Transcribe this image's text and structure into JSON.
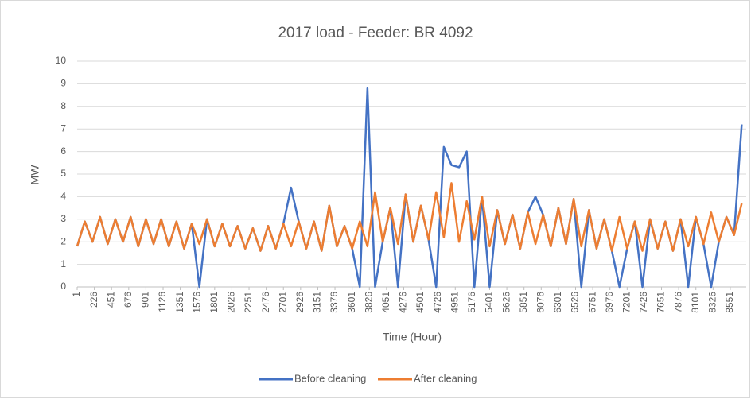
{
  "chart_data": {
    "type": "line",
    "title": "2017 load - Feeder:  BR 4092",
    "xlabel": "Time (Hour)",
    "ylabel": "MW",
    "x": [
      1,
      101,
      201,
      301,
      401,
      501,
      601,
      701,
      801,
      901,
      1001,
      1101,
      1201,
      1301,
      1401,
      1501,
      1601,
      1701,
      1801,
      1901,
      2001,
      2101,
      2201,
      2301,
      2401,
      2501,
      2601,
      2701,
      2801,
      2901,
      3001,
      3101,
      3201,
      3301,
      3401,
      3501,
      3601,
      3701,
      3801,
      3901,
      4001,
      4101,
      4201,
      4301,
      4401,
      4501,
      4601,
      4701,
      4801,
      4901,
      5001,
      5101,
      5201,
      5301,
      5401,
      5501,
      5601,
      5701,
      5801,
      5901,
      6001,
      6101,
      6201,
      6301,
      6401,
      6501,
      6601,
      6701,
      6801,
      6901,
      7001,
      7101,
      7201,
      7301,
      7401,
      7501,
      7601,
      7701,
      7801,
      7901,
      8001,
      8101,
      8201,
      8301,
      8401,
      8501,
      8601,
      8701
    ],
    "series": [
      {
        "name": "Before cleaning",
        "color": "#4472c4",
        "values": [
          1.8,
          2.9,
          2.0,
          3.1,
          1.9,
          3.0,
          2.0,
          3.1,
          1.8,
          3.0,
          1.9,
          3.0,
          1.8,
          2.9,
          1.7,
          2.8,
          0,
          3.0,
          1.8,
          2.8,
          1.8,
          2.7,
          1.7,
          2.6,
          1.6,
          2.7,
          1.7,
          2.8,
          4.4,
          2.9,
          1.7,
          2.9,
          1.6,
          3.6,
          1.8,
          2.7,
          1.7,
          0,
          8.8,
          0,
          2.0,
          3.5,
          0,
          4.1,
          2.0,
          3.6,
          2.1,
          0,
          6.2,
          5.4,
          5.3,
          6.0,
          0,
          4.0,
          0,
          3.4,
          1.9,
          3.2,
          1.7,
          3.3,
          4.0,
          3.2,
          1.8,
          3.5,
          1.9,
          3.9,
          0,
          3.4,
          1.7,
          3.0,
          1.6,
          0,
          1.7,
          2.9,
          0,
          3.0,
          1.7,
          2.9,
          1.6,
          3.0,
          0,
          3.1,
          1.9,
          0,
          2.0,
          3.1,
          2.3,
          7.2
        ]
      },
      {
        "name": "After cleaning",
        "color": "#ed7d31",
        "values": [
          1.8,
          2.9,
          2.0,
          3.1,
          1.9,
          3.0,
          2.0,
          3.1,
          1.8,
          3.0,
          1.9,
          3.0,
          1.8,
          2.9,
          1.7,
          2.8,
          1.9,
          3.0,
          1.8,
          2.8,
          1.8,
          2.7,
          1.7,
          2.6,
          1.6,
          2.7,
          1.7,
          2.8,
          1.8,
          2.9,
          1.7,
          2.9,
          1.6,
          3.6,
          1.8,
          2.7,
          1.7,
          2.9,
          1.8,
          4.2,
          2.0,
          3.5,
          1.9,
          4.1,
          2.0,
          3.6,
          2.1,
          4.2,
          2.2,
          4.6,
          2.0,
          3.8,
          2.1,
          4.0,
          1.8,
          3.4,
          1.9,
          3.2,
          1.7,
          3.3,
          1.9,
          3.2,
          1.8,
          3.5,
          1.9,
          3.9,
          1.8,
          3.4,
          1.7,
          3.0,
          1.6,
          3.1,
          1.7,
          2.9,
          1.6,
          3.0,
          1.7,
          2.9,
          1.6,
          3.0,
          1.8,
          3.1,
          1.9,
          3.3,
          2.0,
          3.1,
          2.3,
          3.7
        ]
      }
    ],
    "xlim": [
      1,
      8760
    ],
    "xticks": [
      1,
      226,
      451,
      676,
      901,
      1126,
      1351,
      1576,
      1801,
      2026,
      2251,
      2476,
      2701,
      2926,
      3151,
      3376,
      3601,
      3826,
      4051,
      4276,
      4501,
      4726,
      4951,
      5176,
      5401,
      5626,
      5851,
      6076,
      6301,
      6526,
      6751,
      6976,
      7201,
      7426,
      7651,
      7876,
      8101,
      8326,
      8551
    ],
    "ylim": [
      0,
      10
    ],
    "yticks": [
      0,
      1,
      2,
      3,
      4,
      5,
      6,
      7,
      8,
      9,
      10
    ],
    "grid": true,
    "legend": "bottom"
  }
}
